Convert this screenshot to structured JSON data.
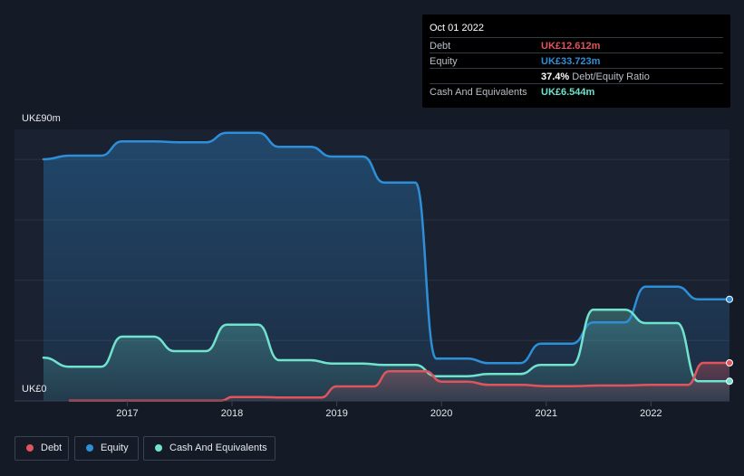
{
  "chart_data": {
    "type": "area",
    "currency_axis": {
      "top_label": "UK£90m",
      "bottom_label": "UK£0"
    },
    "ylim": [
      0,
      90
    ],
    "xlim": [
      2016.2,
      2022.75
    ],
    "x_ticks": [
      "2017",
      "2018",
      "2019",
      "2020",
      "2021",
      "2022"
    ],
    "x_tick_values": [
      2017,
      2018,
      2019,
      2020,
      2021,
      2022
    ],
    "grid": true,
    "legend_position": "bottom-left",
    "colors": {
      "debt": "#e0545e",
      "equity": "#2e8fd9",
      "cash": "#6fe3cd",
      "background": "#151b26",
      "plot_background": "#1a2130"
    },
    "series": [
      {
        "name": "Debt",
        "color": "#e0545e",
        "x": [
          2016.45,
          2016.75,
          2017.0,
          2017.25,
          2017.5,
          2017.75,
          2017.9,
          2018.0,
          2018.25,
          2018.5,
          2018.75,
          2018.85,
          2019.0,
          2019.25,
          2019.35,
          2019.5,
          2019.75,
          2019.85,
          2020.0,
          2020.25,
          2020.45,
          2020.5,
          2020.75,
          2021.0,
          2021.25,
          2021.5,
          2021.75,
          2022.0,
          2022.25,
          2022.35,
          2022.5,
          2022.75
        ],
        "values": [
          0.1,
          0.1,
          0.1,
          0.1,
          0.1,
          0.1,
          0.1,
          1.3,
          1.3,
          1.1,
          1.1,
          1.1,
          4.8,
          4.8,
          4.8,
          9.8,
          9.8,
          9.8,
          6.4,
          6.4,
          5.3,
          5.3,
          5.3,
          4.9,
          4.9,
          5.1,
          5.1,
          5.3,
          5.3,
          5.3,
          12.6,
          12.6
        ]
      },
      {
        "name": "Equity",
        "color": "#2e8fd9",
        "x": [
          2016.2,
          2016.45,
          2016.75,
          2016.95,
          2017.25,
          2017.5,
          2017.75,
          2017.95,
          2018.25,
          2018.45,
          2018.75,
          2018.95,
          2019.25,
          2019.45,
          2019.75,
          2019.95,
          2020.25,
          2020.45,
          2020.75,
          2020.95,
          2021.25,
          2021.45,
          2021.75,
          2021.95,
          2022.25,
          2022.45,
          2022.75
        ],
        "values": [
          80.1,
          81.3,
          81.3,
          86.0,
          86.0,
          85.7,
          85.7,
          88.9,
          88.9,
          84.2,
          84.2,
          81.0,
          81.0,
          72.4,
          72.4,
          14.0,
          14.0,
          12.5,
          12.5,
          19.0,
          19.0,
          26.0,
          26.0,
          37.9,
          37.9,
          33.7,
          33.7
        ]
      },
      {
        "name": "Cash And Equivalents",
        "color": "#6fe3cd",
        "x": [
          2016.2,
          2016.45,
          2016.75,
          2016.95,
          2017.25,
          2017.45,
          2017.75,
          2017.95,
          2018.25,
          2018.45,
          2018.75,
          2018.95,
          2019.25,
          2019.45,
          2019.75,
          2019.95,
          2020.25,
          2020.45,
          2020.75,
          2020.95,
          2021.25,
          2021.45,
          2021.75,
          2021.95,
          2022.25,
          2022.45,
          2022.75
        ],
        "values": [
          14.3,
          11.3,
          11.3,
          21.3,
          21.3,
          16.5,
          16.5,
          25.3,
          25.3,
          13.5,
          13.5,
          12.4,
          12.4,
          11.9,
          11.9,
          8.2,
          8.2,
          8.9,
          8.9,
          11.9,
          11.9,
          30.2,
          30.2,
          25.8,
          25.8,
          6.5,
          6.5
        ]
      }
    ]
  },
  "tooltip": {
    "date": "Oct 01 2022",
    "rows": [
      {
        "label": "Debt",
        "value": "UK£12.612m",
        "color": "#e0545e"
      },
      {
        "label": "Equity",
        "value": "UK£33.723m",
        "color": "#2e8fd9"
      },
      {
        "label": "",
        "ratio_value": "37.4%",
        "ratio_label": "Debt/Equity Ratio"
      },
      {
        "label": "Cash And Equivalents",
        "value": "UK£6.544m",
        "color": "#6fe3cd"
      }
    ]
  },
  "legend": [
    {
      "label": "Debt",
      "color": "#e0545e"
    },
    {
      "label": "Equity",
      "color": "#2e8fd9"
    },
    {
      "label": "Cash And Equivalents",
      "color": "#6fe3cd"
    }
  ]
}
